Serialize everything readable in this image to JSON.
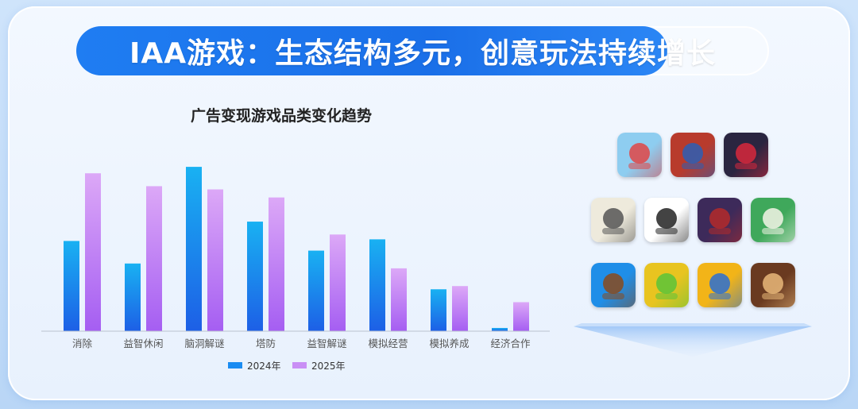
{
  "banner": {
    "title": "IAA游戏：生态结构多元，创意玩法持续增长"
  },
  "colors": {
    "series_2024": "#1a8cf2",
    "series_2025": "#c98ff5",
    "banner": "#1f7df2"
  },
  "chart_data": {
    "type": "bar",
    "title": "广告变现游戏品类变化趋势",
    "categories": [
      "消除",
      "益智休闲",
      "脑洞解谜",
      "塔防",
      "益智解谜",
      "模拟经营",
      "模拟养成",
      "经济合作"
    ],
    "series": [
      {
        "name": "2024年",
        "values": [
          56,
          42,
          102,
          68,
          50,
          57,
          26,
          2
        ]
      },
      {
        "name": "2025年",
        "values": [
          98,
          90,
          88,
          83,
          60,
          39,
          28,
          18
        ]
      }
    ],
    "ylim": [
      0,
      105
    ],
    "grid": false,
    "legend": "bottom",
    "value_labels": false
  },
  "icons": [
    {
      "name": "plane-game-icon",
      "bg": "#8ecdf0",
      "fg": "#e04545"
    },
    {
      "name": "knight-game-icon",
      "bg": "#b83b2c",
      "fg": "#2b5fb5"
    },
    {
      "name": "reaper-game-icon",
      "bg": "#2a2540",
      "fg": "#d8283c"
    },
    {
      "name": "sketch-game-icon",
      "bg": "#eeeadc",
      "fg": "#555555"
    },
    {
      "name": "brain-maze-icon",
      "bg": "#ffffff",
      "fg": "#222222"
    },
    {
      "name": "zombie-game-icon",
      "bg": "#3d2a5a",
      "fg": "#b42a2a"
    },
    {
      "name": "mahjong-game-icon",
      "bg": "#3fa85b",
      "fg": "#f4f4e8"
    },
    {
      "name": "crossbow-game-icon",
      "bg": "#1f8ee8",
      "fg": "#8a4a1c"
    },
    {
      "name": "alien-game-icon",
      "bg": "#e8c420",
      "fg": "#5bc43a"
    },
    {
      "name": "caveman-gear-icon",
      "bg": "#f2b418",
      "fg": "#2a6fd4"
    },
    {
      "name": "warrior-game-icon",
      "bg": "#6a3a20",
      "fg": "#e9b97a"
    }
  ]
}
